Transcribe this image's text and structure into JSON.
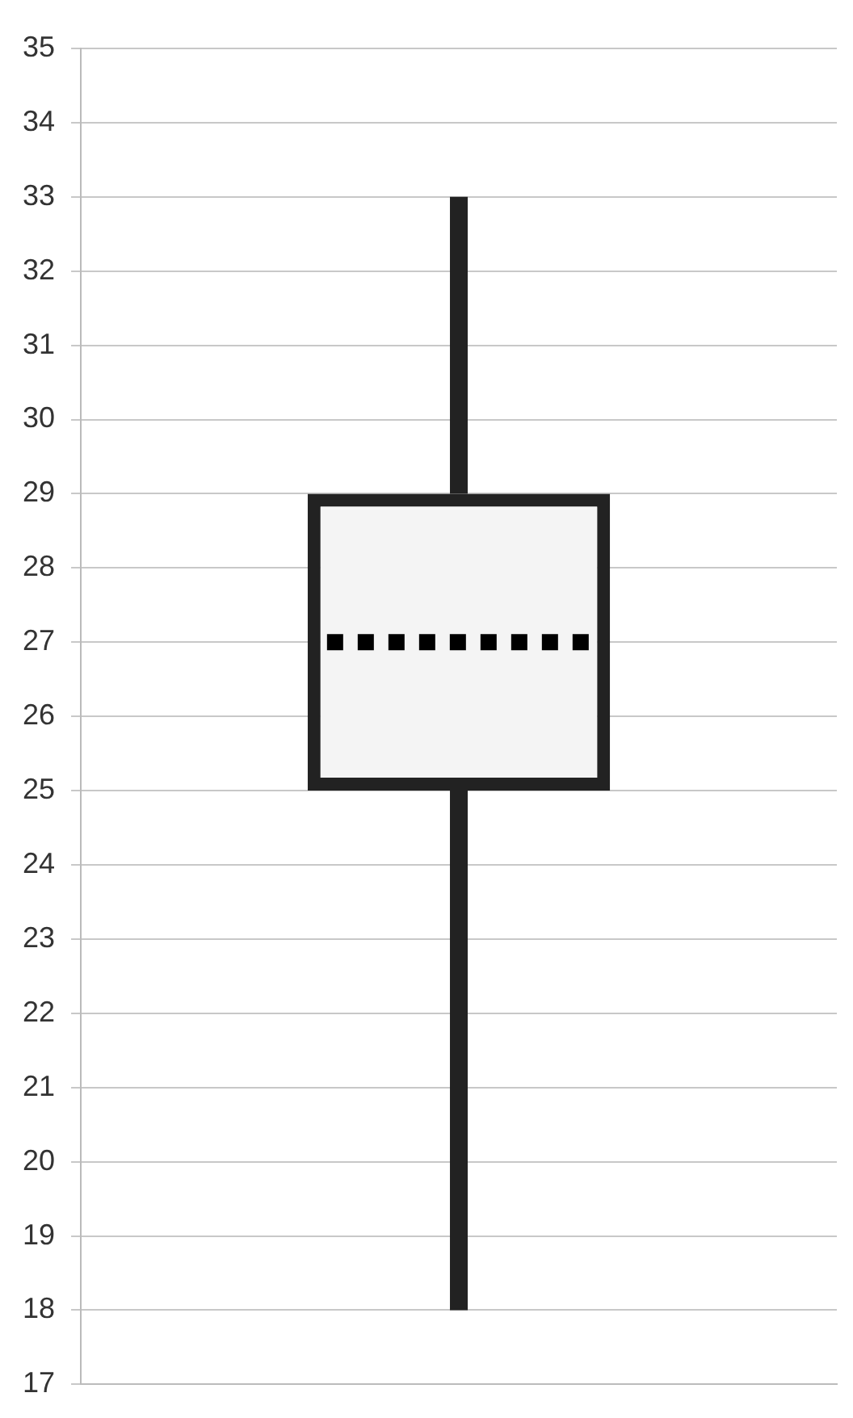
{
  "chart_data": {
    "type": "box",
    "categories": [
      null
    ],
    "boxes": [
      {
        "low": 18,
        "q1": 25,
        "median": 27,
        "q3": 29,
        "high": 33
      }
    ],
    "color": "#222222",
    "ylim": [
      17,
      35
    ],
    "yticks": [
      17,
      18,
      19,
      20,
      21,
      22,
      23,
      24,
      25,
      26,
      27,
      28,
      29,
      30,
      31,
      32,
      33,
      34,
      35
    ],
    "grid": "y",
    "tick_labels": "y"
  }
}
